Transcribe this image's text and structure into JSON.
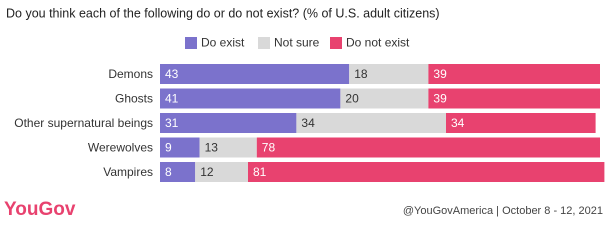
{
  "chart_data": {
    "type": "stacked_bar_horizontal",
    "title": "Do you think each of the following do or do not exist? (% of U.S. adult citizens)",
    "categories": [
      "Demons",
      "Ghosts",
      "Other supernatural beings",
      "Werewolves",
      "Vampires"
    ],
    "series": [
      {
        "name": "Do exist",
        "color": "#7b72cc",
        "values": [
          43,
          41,
          31,
          9,
          8
        ]
      },
      {
        "name": "Not sure",
        "color": "#d9d9d9",
        "values": [
          18,
          20,
          34,
          13,
          12
        ]
      },
      {
        "name": "Do not exist",
        "color": "#e8426f",
        "values": [
          39,
          39,
          34,
          78,
          81
        ]
      }
    ],
    "xlim": [
      0,
      100
    ],
    "legend": "top",
    "logo": "YouGov",
    "source": "@YouGovAmerica | October 8 - 12, 2021"
  }
}
